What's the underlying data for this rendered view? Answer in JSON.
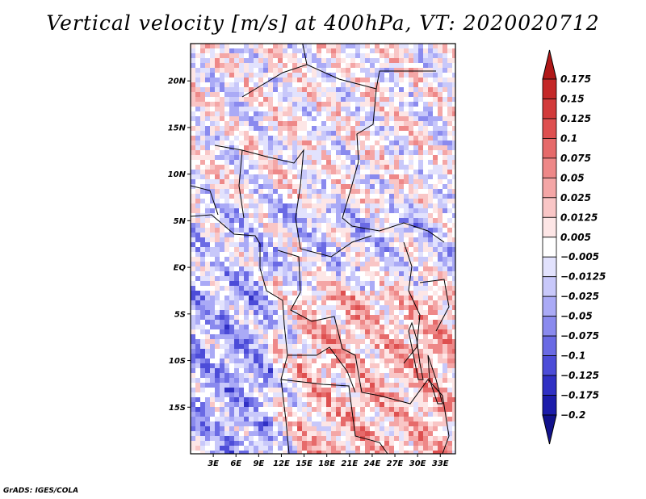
{
  "title": "Vertical velocity [m/s] at 400hPa, VT: 2020020712",
  "credit": "GrADS: IGES/COLA",
  "map": {
    "variable": "Vertical velocity",
    "units": "m/s",
    "level": "400hPa",
    "valid_time": "2020020712",
    "region": "Central Africa",
    "lon_range": [
      0,
      35
    ],
    "lat_range": [
      -20,
      24
    ],
    "lat_labels": [
      {
        "lat": 20,
        "label": "20N"
      },
      {
        "lat": 15,
        "label": "15N"
      },
      {
        "lat": 10,
        "label": "10N"
      },
      {
        "lat": 5,
        "label": "5N"
      },
      {
        "lat": 0,
        "label": "EQ"
      },
      {
        "lat": -5,
        "label": "5S"
      },
      {
        "lat": -10,
        "label": "10S"
      },
      {
        "lat": -15,
        "label": "15S"
      }
    ],
    "lon_labels": [
      {
        "lon": 3,
        "label": "3E"
      },
      {
        "lon": 6,
        "label": "6E"
      },
      {
        "lon": 9,
        "label": "9E"
      },
      {
        "lon": 12,
        "label": "12E"
      },
      {
        "lon": 15,
        "label": "15E"
      },
      {
        "lon": 18,
        "label": "18E"
      },
      {
        "lon": 21,
        "label": "21E"
      },
      {
        "lon": 24,
        "label": "24E"
      },
      {
        "lon": 27,
        "label": "27E"
      },
      {
        "lon": 30,
        "label": "30E"
      },
      {
        "lon": 33,
        "label": "33E"
      }
    ]
  },
  "colorbar": {
    "levels": [
      "0.175",
      "0.15",
      "0.125",
      "0.1",
      "0.075",
      "0.05",
      "0.025",
      "0.0125",
      "0.005",
      "−0.005",
      "−0.0125",
      "−0.025",
      "−0.05",
      "−0.075",
      "−0.1",
      "−0.125",
      "−0.175",
      "−0.2"
    ],
    "colors": [
      "#b01818",
      "#c42828",
      "#d23a3a",
      "#de5050",
      "#e66a6a",
      "#ee8888",
      "#f4a6a6",
      "#f9c6c6",
      "#fde6e6",
      "#ffffff",
      "#e2e2fd",
      "#c8c8fa",
      "#aaaaf6",
      "#8a8aee",
      "#6a6ae4",
      "#4c4cd8",
      "#3030c4",
      "#1c1caa",
      "#12128c"
    ]
  }
}
